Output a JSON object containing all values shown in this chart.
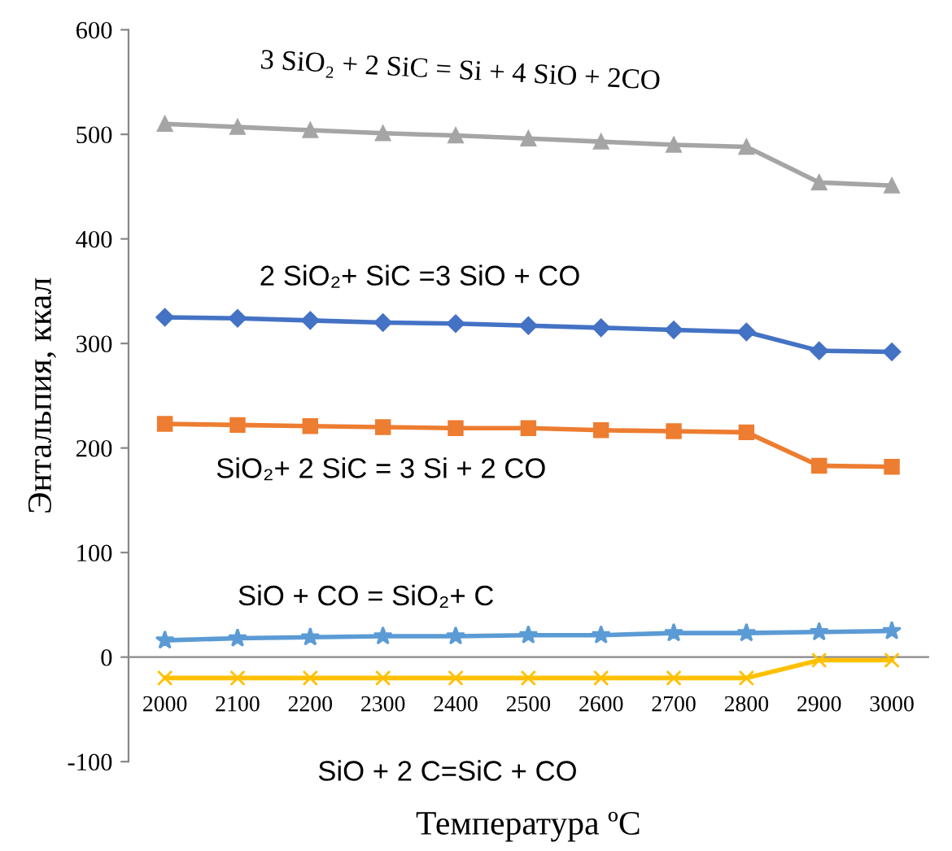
{
  "chart_data": {
    "type": "line",
    "xlabel": "Температура ºC",
    "ylabel": "Энтальпия, ккал",
    "categories": [
      "2000",
      "2100",
      "2200",
      "2300",
      "2400",
      "2500",
      "2600",
      "2700",
      "2800",
      "2900",
      "3000"
    ],
    "ylim": [
      -100,
      600
    ],
    "yticks": [
      -100,
      0,
      100,
      200,
      300,
      400,
      500,
      600
    ],
    "grid": false,
    "legend": false,
    "series": [
      {
        "name": "3 SiO₂ + 2 SiC = Si + 4 SiO + 2CO",
        "color": "#a5a5a5",
        "marker": "triangle",
        "values": [
          510,
          507,
          504,
          501,
          499,
          496,
          493,
          490,
          488,
          454,
          451
        ]
      },
      {
        "name": "2 SiO₂+ SiC =3 SiO + CO",
        "color": "#4472c4",
        "marker": "diamond",
        "values": [
          325,
          324,
          322,
          320,
          319,
          317,
          315,
          313,
          311,
          293,
          292
        ]
      },
      {
        "name": "SiO₂+ 2 SiC = 3 Si + 2 CO",
        "color": "#ed7d31",
        "marker": "square",
        "values": [
          223,
          222,
          221,
          220,
          219,
          219,
          217,
          216,
          215,
          183,
          182
        ]
      },
      {
        "name": "SiO + CO = SiO₂+ C",
        "color": "#5b9bd5",
        "marker": "star",
        "values": [
          16,
          18,
          19,
          20,
          20,
          21,
          21,
          23,
          23,
          24,
          25
        ]
      },
      {
        "name": "SiO + 2 C=SiC + CO",
        "color": "#ffc000",
        "marker": "cross",
        "values": [
          -20,
          -20,
          -20,
          -20,
          -20,
          -20,
          -20,
          -20,
          -20,
          -3,
          -3
        ]
      }
    ]
  }
}
